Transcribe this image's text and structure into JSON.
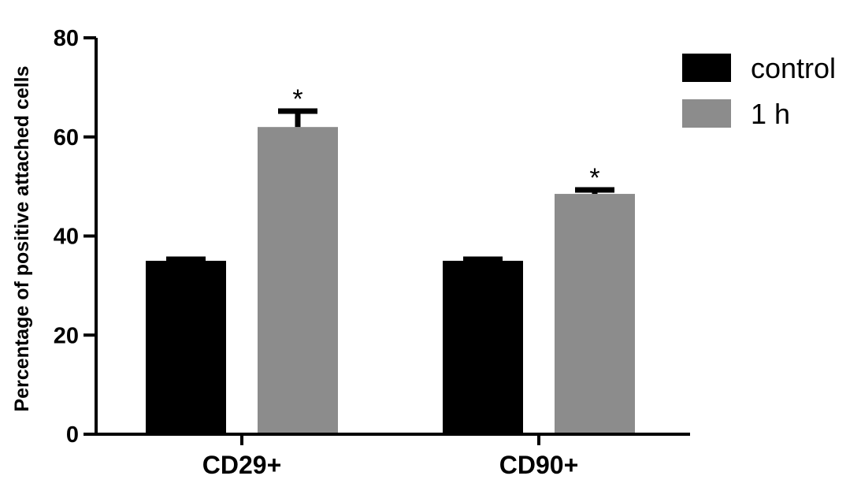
{
  "chart_data": {
    "type": "bar",
    "title": "",
    "xlabel": "",
    "ylabel": "Percentage of positive attached cells",
    "ylim": [
      0,
      80
    ],
    "yticks": [
      0,
      20,
      40,
      60,
      80
    ],
    "categories": [
      "CD29+",
      "CD90+"
    ],
    "series": [
      {
        "name": "control",
        "color": "#000000",
        "values": [
          35,
          35
        ],
        "errors": [
          0.3,
          0.3
        ],
        "annotations": [
          "",
          ""
        ]
      },
      {
        "name": "1 h",
        "color": "#8c8c8c",
        "values": [
          62,
          48.5
        ],
        "errors": [
          3.2,
          0.8
        ],
        "annotations": [
          "*",
          "*"
        ]
      }
    ],
    "grid": false,
    "legend_position": "top-right"
  }
}
